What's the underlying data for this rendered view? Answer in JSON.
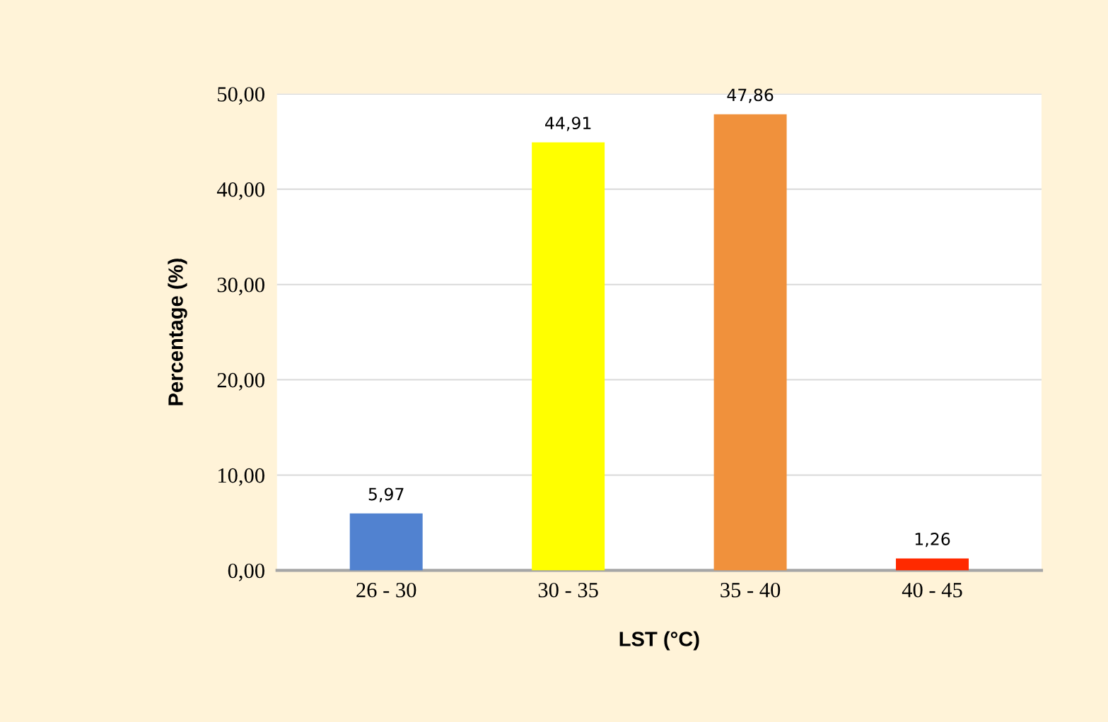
{
  "chart_data": {
    "type": "bar",
    "xlabel": "LST (°C)",
    "ylabel": "Percentage (%)",
    "categories": [
      "26 - 30",
      "30 - 35",
      "35 - 40",
      "40 - 45"
    ],
    "values": [
      5.97,
      44.91,
      47.86,
      1.26
    ],
    "colors": [
      "#5182d0",
      "#ffff00",
      "#f0913c",
      "#ff2a00"
    ],
    "value_labels": [
      "5,97",
      "44,91",
      "47,86",
      "1,26"
    ],
    "ylim": [
      0,
      50
    ],
    "yticks": [
      {
        "value": 0,
        "label": "0,00"
      },
      {
        "value": 10,
        "label": "10,00"
      },
      {
        "value": 20,
        "label": "20,00"
      },
      {
        "value": 30,
        "label": "30,00"
      },
      {
        "value": 40,
        "label": "40,00"
      },
      {
        "value": 50,
        "label": "50,00"
      }
    ],
    "grid": "y"
  }
}
